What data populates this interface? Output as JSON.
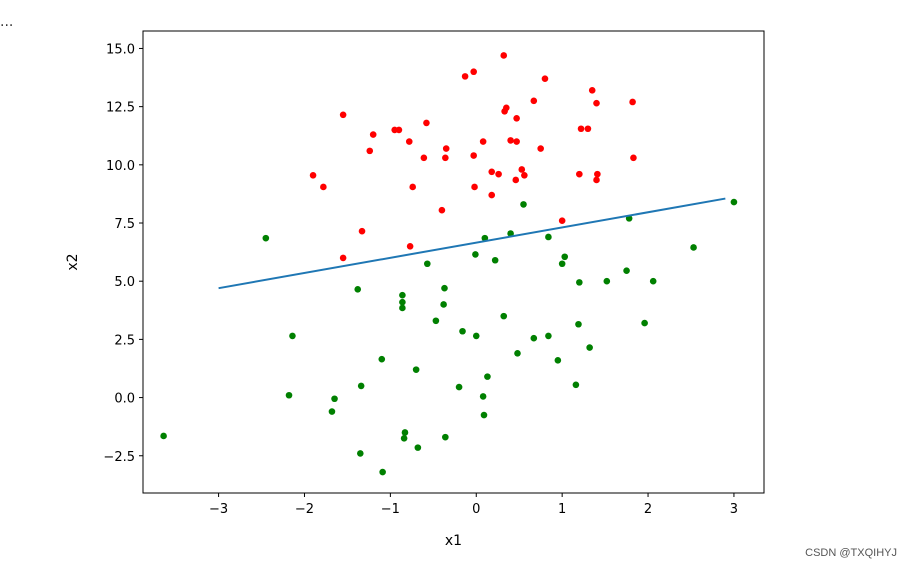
{
  "toolbar": {
    "ellipsis": "..."
  },
  "watermark": "CSDN @TXQIHYJ",
  "chart_data": {
    "type": "scatter",
    "title": "",
    "xlabel": "x1",
    "ylabel": "x2",
    "xlim": [
      -3.88,
      3.35
    ],
    "ylim": [
      -4.1,
      15.75
    ],
    "xticks": [
      -3,
      -2,
      -1,
      0,
      1,
      2,
      3
    ],
    "xtick_labels": [
      "−3",
      "−2",
      "−1",
      "0",
      "1",
      "2",
      "3"
    ],
    "yticks": [
      -2.5,
      0.0,
      2.5,
      5.0,
      7.5,
      10.0,
      12.5,
      15.0
    ],
    "ytick_labels": [
      "−2.5",
      "0.0",
      "2.5",
      "5.0",
      "7.5",
      "10.0",
      "12.5",
      "15.0"
    ],
    "grid": false,
    "series": [
      {
        "color": "#ff0000",
        "marker": "circle",
        "points": [
          [
            0.32,
            14.7
          ],
          [
            -0.13,
            13.8
          ],
          [
            -0.03,
            14.0
          ],
          [
            0.8,
            13.7
          ],
          [
            1.35,
            13.2
          ],
          [
            1.82,
            12.7
          ],
          [
            1.4,
            12.65
          ],
          [
            0.67,
            12.75
          ],
          [
            0.35,
            12.45
          ],
          [
            0.33,
            12.3
          ],
          [
            -1.55,
            12.15
          ],
          [
            -0.95,
            11.5
          ],
          [
            -0.9,
            11.5
          ],
          [
            -0.58,
            11.8
          ],
          [
            -1.2,
            11.3
          ],
          [
            0.47,
            12.0
          ],
          [
            1.22,
            11.55
          ],
          [
            1.3,
            11.55
          ],
          [
            -0.78,
            11.0
          ],
          [
            0.08,
            11.0
          ],
          [
            0.4,
            11.05
          ],
          [
            0.47,
            11.0
          ],
          [
            0.75,
            10.7
          ],
          [
            -1.24,
            10.6
          ],
          [
            -0.35,
            10.7
          ],
          [
            -0.61,
            10.3
          ],
          [
            -0.36,
            10.3
          ],
          [
            -0.03,
            10.4
          ],
          [
            1.83,
            10.3
          ],
          [
            0.53,
            9.8
          ],
          [
            0.18,
            9.7
          ],
          [
            0.26,
            9.6
          ],
          [
            0.56,
            9.55
          ],
          [
            -1.9,
            9.55
          ],
          [
            1.2,
            9.6
          ],
          [
            1.41,
            9.6
          ],
          [
            1.4,
            9.35
          ],
          [
            0.46,
            9.35
          ],
          [
            -1.78,
            9.05
          ],
          [
            -0.74,
            9.05
          ],
          [
            -0.02,
            9.05
          ],
          [
            0.18,
            8.7
          ],
          [
            -0.4,
            8.05
          ],
          [
            1.0,
            7.6
          ],
          [
            -1.33,
            7.15
          ],
          [
            -0.77,
            6.5
          ],
          [
            -1.55,
            6.0
          ]
        ]
      },
      {
        "color": "#008000",
        "marker": "circle",
        "points": [
          [
            3.0,
            8.4
          ],
          [
            0.55,
            8.3
          ],
          [
            1.78,
            7.7
          ],
          [
            0.4,
            7.05
          ],
          [
            0.84,
            6.9
          ],
          [
            -2.45,
            6.85
          ],
          [
            0.1,
            6.85
          ],
          [
            2.53,
            6.45
          ],
          [
            -0.01,
            6.15
          ],
          [
            1.03,
            6.05
          ],
          [
            0.22,
            5.9
          ],
          [
            1.0,
            5.75
          ],
          [
            -0.57,
            5.75
          ],
          [
            1.75,
            5.45
          ],
          [
            1.2,
            4.95
          ],
          [
            1.52,
            5.0
          ],
          [
            2.06,
            5.0
          ],
          [
            -1.38,
            4.65
          ],
          [
            -0.37,
            4.7
          ],
          [
            -0.86,
            4.4
          ],
          [
            -0.86,
            4.1
          ],
          [
            -0.38,
            4.0
          ],
          [
            -0.86,
            3.85
          ],
          [
            0.32,
            3.5
          ],
          [
            -0.47,
            3.3
          ],
          [
            1.96,
            3.2
          ],
          [
            1.19,
            3.15
          ],
          [
            -0.16,
            2.85
          ],
          [
            -2.14,
            2.65
          ],
          [
            0.0,
            2.65
          ],
          [
            0.84,
            2.65
          ],
          [
            0.67,
            2.55
          ],
          [
            1.32,
            2.15
          ],
          [
            0.48,
            1.9
          ],
          [
            -1.1,
            1.65
          ],
          [
            0.95,
            1.6
          ],
          [
            -0.7,
            1.2
          ],
          [
            0.13,
            0.9
          ],
          [
            -1.34,
            0.5
          ],
          [
            -0.2,
            0.45
          ],
          [
            1.16,
            0.55
          ],
          [
            -2.18,
            0.1
          ],
          [
            -1.65,
            -0.05
          ],
          [
            0.08,
            0.05
          ],
          [
            -1.68,
            -0.6
          ],
          [
            0.09,
            -0.75
          ],
          [
            -3.64,
            -1.65
          ],
          [
            -0.36,
            -1.7
          ],
          [
            -0.84,
            -1.75
          ],
          [
            -0.83,
            -1.5
          ],
          [
            -0.68,
            -2.15
          ],
          [
            -1.35,
            -2.4
          ],
          [
            -1.09,
            -3.2
          ]
        ]
      }
    ],
    "line": {
      "color": "#1f77b4",
      "x": [
        -3.0,
        2.9
      ],
      "y": [
        4.7,
        8.55
      ]
    }
  }
}
